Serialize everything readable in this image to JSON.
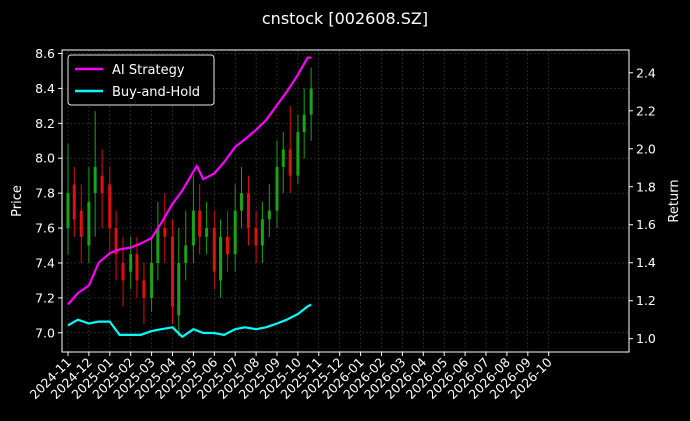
{
  "chart_data": {
    "type": "line",
    "title": "cnstock [002608.SZ]",
    "xlabel": "",
    "ylabel_left": "Price",
    "ylabel_right": "Return",
    "grid": true,
    "legend_position": "top-left",
    "x_tick_labels": [
      "2024-11",
      "2024-12",
      "2025-01",
      "2025-02",
      "2025-03",
      "2025-04",
      "2025-05",
      "2025-06",
      "2025-07",
      "2025-08",
      "2025-09",
      "2025-10",
      "2025-11",
      "2025-12",
      "2026-01",
      "2026-02",
      "2026-03",
      "2026-04",
      "2026-05",
      "2026-06",
      "2026-07",
      "2026-08",
      "2026-09",
      "2026-10"
    ],
    "left_axis": {
      "ylim": [
        6.89,
        8.62
      ],
      "ticks": [
        7.0,
        7.2,
        7.4,
        7.6,
        7.8,
        8.0,
        8.2,
        8.4,
        8.6
      ],
      "tick_labels": [
        "7.0",
        "7.2",
        "7.4",
        "7.6",
        "7.8",
        "8.0",
        "8.2",
        "8.4",
        "8.6"
      ]
    },
    "right_axis": {
      "ylim": [
        0.93,
        2.52
      ],
      "ticks": [
        1.0,
        1.2,
        1.4,
        1.6,
        1.8,
        2.0,
        2.2,
        2.4
      ],
      "tick_labels": [
        "1.0",
        "1.2",
        "1.4",
        "1.6",
        "1.8",
        "2.0",
        "2.2",
        "2.4"
      ]
    },
    "series": [
      {
        "name": "AI Strategy",
        "axis": "right",
        "color": "#ff00ff",
        "x": [
          "2024-11-01",
          "2024-11-15",
          "2024-12-01",
          "2024-12-15",
          "2025-01-01",
          "2025-01-15",
          "2025-02-01",
          "2025-02-15",
          "2025-03-01",
          "2025-03-15",
          "2025-04-01",
          "2025-04-15",
          "2025-05-01",
          "2025-05-06",
          "2025-05-15",
          "2025-06-01",
          "2025-06-15",
          "2025-07-01",
          "2025-07-15",
          "2025-08-01",
          "2025-08-15",
          "2025-09-01",
          "2025-09-15",
          "2025-10-01",
          "2025-10-15",
          "2025-10-20"
        ],
        "values": [
          1.18,
          1.24,
          1.28,
          1.4,
          1.45,
          1.47,
          1.48,
          1.5,
          1.53,
          1.61,
          1.71,
          1.78,
          1.88,
          1.91,
          1.84,
          1.87,
          1.93,
          2.01,
          2.05,
          2.1,
          2.15,
          2.23,
          2.3,
          2.39,
          2.48,
          2.48
        ]
      },
      {
        "name": "Buy-and-Hold",
        "axis": "right",
        "color": "#00ffff",
        "x": [
          "2024-11-01",
          "2024-11-15",
          "2024-12-01",
          "2024-12-15",
          "2025-01-01",
          "2025-01-15",
          "2025-02-01",
          "2025-02-15",
          "2025-03-01",
          "2025-03-15",
          "2025-04-01",
          "2025-04-15",
          "2025-05-01",
          "2025-05-15",
          "2025-06-01",
          "2025-06-15",
          "2025-07-01",
          "2025-07-15",
          "2025-08-01",
          "2025-08-15",
          "2025-09-01",
          "2025-09-15",
          "2025-10-01",
          "2025-10-15",
          "2025-10-20"
        ],
        "values": [
          1.07,
          1.1,
          1.08,
          1.09,
          1.09,
          1.02,
          1.02,
          1.02,
          1.04,
          1.05,
          1.06,
          1.01,
          1.05,
          1.03,
          1.03,
          1.02,
          1.05,
          1.06,
          1.05,
          1.06,
          1.08,
          1.1,
          1.13,
          1.17,
          1.18
        ]
      }
    ],
    "price_bars": {
      "axis": "left",
      "up_color": "#1aa31a",
      "down_color": "#e01010",
      "x": [
        "2024-11-01",
        "2024-11-10",
        "2024-11-20",
        "2024-12-01",
        "2024-12-10",
        "2024-12-20",
        "2025-01-01",
        "2025-01-10",
        "2025-01-20",
        "2025-02-01",
        "2025-02-10",
        "2025-02-20",
        "2025-03-01",
        "2025-03-10",
        "2025-03-20",
        "2025-04-01",
        "2025-04-10",
        "2025-04-20",
        "2025-05-01",
        "2025-05-10",
        "2025-05-20",
        "2025-06-01",
        "2025-06-10",
        "2025-06-20",
        "2025-07-01",
        "2025-07-10",
        "2025-07-20",
        "2025-08-01",
        "2025-08-10",
        "2025-08-20",
        "2025-09-01",
        "2025-09-10",
        "2025-09-20",
        "2025-10-01",
        "2025-10-10",
        "2025-10-20"
      ],
      "open": [
        7.6,
        7.85,
        7.7,
        7.5,
        7.8,
        7.9,
        7.85,
        7.6,
        7.4,
        7.35,
        7.45,
        7.3,
        7.2,
        7.4,
        7.6,
        7.55,
        7.1,
        7.4,
        7.5,
        7.7,
        7.55,
        7.6,
        7.3,
        7.55,
        7.45,
        7.7,
        7.8,
        7.6,
        7.5,
        7.65,
        7.7,
        7.95,
        8.05,
        7.9,
        8.15,
        8.25
      ],
      "close": [
        7.8,
        7.65,
        7.55,
        7.75,
        7.95,
        7.8,
        7.6,
        7.45,
        7.3,
        7.45,
        7.3,
        7.2,
        7.4,
        7.6,
        7.55,
        7.15,
        7.4,
        7.5,
        7.7,
        7.55,
        7.6,
        7.35,
        7.55,
        7.45,
        7.7,
        7.8,
        7.6,
        7.5,
        7.65,
        7.7,
        7.95,
        8.05,
        7.9,
        8.15,
        8.25,
        8.4
      ],
      "high": [
        8.08,
        7.95,
        7.85,
        7.95,
        8.27,
        8.05,
        7.95,
        7.7,
        7.55,
        7.55,
        7.55,
        7.4,
        7.55,
        7.75,
        7.8,
        7.65,
        7.6,
        7.7,
        7.9,
        7.85,
        7.75,
        7.7,
        7.65,
        7.7,
        7.85,
        7.95,
        7.9,
        7.7,
        7.75,
        7.85,
        8.1,
        8.15,
        8.3,
        8.25,
        8.4,
        8.52
      ],
      "low": [
        7.45,
        7.55,
        7.4,
        7.4,
        7.55,
        7.6,
        7.45,
        7.3,
        7.15,
        7.25,
        7.2,
        7.05,
        7.12,
        7.3,
        7.4,
        7.05,
        6.98,
        7.3,
        7.4,
        7.45,
        7.45,
        7.25,
        7.2,
        7.35,
        7.35,
        7.6,
        7.5,
        7.4,
        7.4,
        7.55,
        7.6,
        7.8,
        7.8,
        7.85,
        8.0,
        8.1
      ]
    }
  }
}
